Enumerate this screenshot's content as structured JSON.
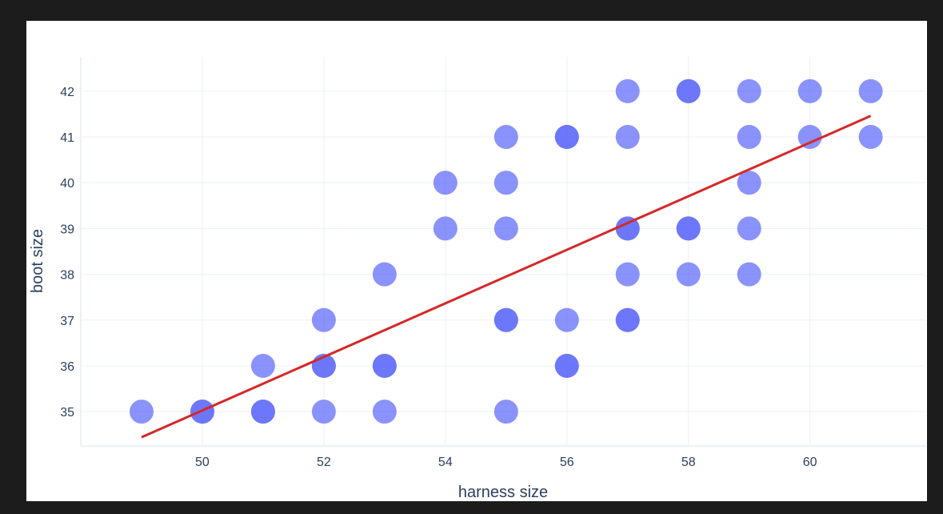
{
  "chart_data": {
    "type": "scatter",
    "title": "",
    "xlabel": "harness size",
    "ylabel": "boot size",
    "xlim": [
      48.0,
      61.9
    ],
    "ylim": [
      34.25,
      42.75
    ],
    "x_ticks": [
      50,
      52,
      54,
      56,
      58,
      60
    ],
    "y_ticks": [
      35,
      36,
      37,
      38,
      39,
      40,
      41,
      42
    ],
    "grid": true,
    "legend": "none",
    "marker_color": "#636efa",
    "marker_opacity": 0.75,
    "trendline_color": "#d62728",
    "points": [
      {
        "x": 49,
        "y": 35
      },
      {
        "x": 50,
        "y": 35
      },
      {
        "x": 50,
        "y": 35
      },
      {
        "x": 51,
        "y": 35
      },
      {
        "x": 51,
        "y": 35
      },
      {
        "x": 51,
        "y": 36
      },
      {
        "x": 52,
        "y": 35
      },
      {
        "x": 52,
        "y": 36
      },
      {
        "x": 52,
        "y": 36
      },
      {
        "x": 52,
        "y": 37
      },
      {
        "x": 53,
        "y": 35
      },
      {
        "x": 53,
        "y": 36
      },
      {
        "x": 53,
        "y": 36
      },
      {
        "x": 53,
        "y": 38
      },
      {
        "x": 54,
        "y": 39
      },
      {
        "x": 54,
        "y": 40
      },
      {
        "x": 55,
        "y": 35
      },
      {
        "x": 55,
        "y": 37
      },
      {
        "x": 55,
        "y": 37
      },
      {
        "x": 55,
        "y": 39
      },
      {
        "x": 55,
        "y": 40
      },
      {
        "x": 55,
        "y": 41
      },
      {
        "x": 56,
        "y": 36
      },
      {
        "x": 56,
        "y": 36
      },
      {
        "x": 56,
        "y": 37
      },
      {
        "x": 56,
        "y": 41
      },
      {
        "x": 56,
        "y": 41
      },
      {
        "x": 57,
        "y": 37
      },
      {
        "x": 57,
        "y": 37
      },
      {
        "x": 57,
        "y": 38
      },
      {
        "x": 57,
        "y": 39
      },
      {
        "x": 57,
        "y": 39
      },
      {
        "x": 57,
        "y": 41
      },
      {
        "x": 57,
        "y": 42
      },
      {
        "x": 58,
        "y": 38
      },
      {
        "x": 58,
        "y": 39
      },
      {
        "x": 58,
        "y": 39
      },
      {
        "x": 58,
        "y": 42
      },
      {
        "x": 58,
        "y": 42
      },
      {
        "x": 59,
        "y": 38
      },
      {
        "x": 59,
        "y": 39
      },
      {
        "x": 59,
        "y": 40
      },
      {
        "x": 59,
        "y": 41
      },
      {
        "x": 59,
        "y": 42
      },
      {
        "x": 60,
        "y": 41
      },
      {
        "x": 60,
        "y": 42
      },
      {
        "x": 61,
        "y": 41
      },
      {
        "x": 61,
        "y": 42
      }
    ],
    "trendline": [
      {
        "x": 49,
        "y": 34.44
      },
      {
        "x": 61,
        "y": 41.46
      }
    ]
  }
}
